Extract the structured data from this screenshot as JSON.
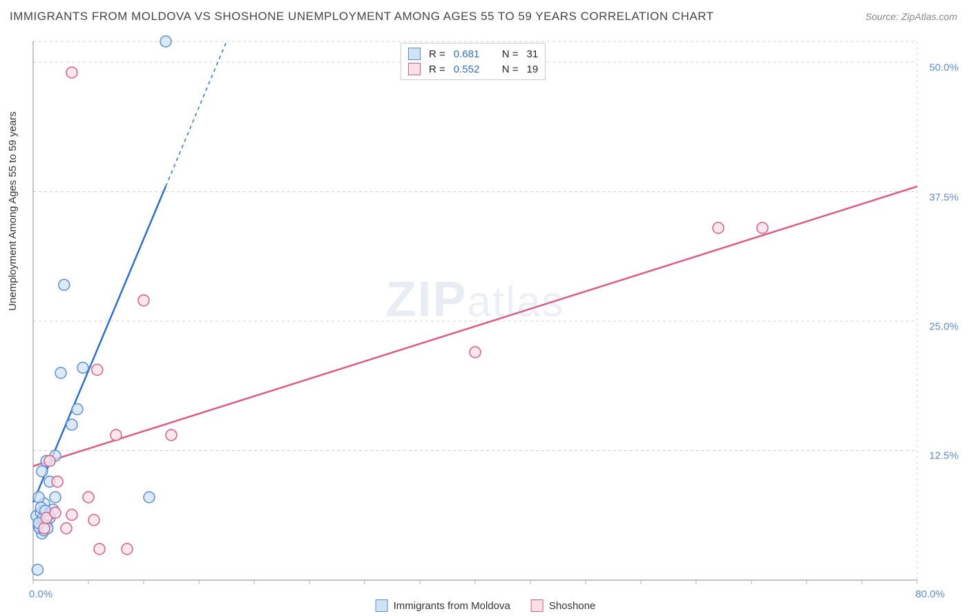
{
  "title": "IMMIGRANTS FROM MOLDOVA VS SHOSHONE UNEMPLOYMENT AMONG AGES 55 TO 59 YEARS CORRELATION CHART",
  "source": "Source: ZipAtlas.com",
  "y_axis_label": "Unemployment Among Ages 55 to 59 years",
  "watermark": {
    "part1": "ZIP",
    "part2": "atlas"
  },
  "chart": {
    "type": "scatter",
    "background_color": "#ffffff",
    "grid_color": "#d0d0d0",
    "axis_color": "#b0b0b0",
    "xlim": [
      0,
      80
    ],
    "ylim": [
      0,
      52
    ],
    "y_ticks": [
      12.5,
      25.0,
      37.5,
      50.0
    ],
    "y_tick_labels": [
      "12.5%",
      "25.0%",
      "37.5%",
      "50.0%"
    ],
    "x_tick_min": {
      "value": 0,
      "label": "0.0%"
    },
    "x_tick_max": {
      "value": 80,
      "label": "80.0%"
    },
    "marker_radius": 8,
    "marker_stroke_width": 1.5,
    "trendline_width": 2.5,
    "series": [
      {
        "name": "Immigrants from Moldova",
        "fill": "#cfe2f6",
        "stroke": "#5b8dd6",
        "line_color": "#2a6fd6",
        "r": "0.681",
        "n": "31",
        "trendline": {
          "x1": 0,
          "y1": 7.5,
          "x2": 17.5,
          "y2": 52,
          "dash_after_x": 12
        },
        "points": [
          {
            "x": 0.4,
            "y": 1.0
          },
          {
            "x": 0.8,
            "y": 4.5
          },
          {
            "x": 0.5,
            "y": 5.2
          },
          {
            "x": 1.0,
            "y": 5.8
          },
          {
            "x": 1.2,
            "y": 5.5
          },
          {
            "x": 0.3,
            "y": 6.2
          },
          {
            "x": 1.5,
            "y": 6.0
          },
          {
            "x": 0.7,
            "y": 6.5
          },
          {
            "x": 1.8,
            "y": 6.8
          },
          {
            "x": 1.0,
            "y": 7.4
          },
          {
            "x": 0.5,
            "y": 8.0
          },
          {
            "x": 2.0,
            "y": 8.0
          },
          {
            "x": 10.5,
            "y": 8.0
          },
          {
            "x": 1.5,
            "y": 9.5
          },
          {
            "x": 0.8,
            "y": 10.5
          },
          {
            "x": 1.2,
            "y": 11.5
          },
          {
            "x": 2.0,
            "y": 12.0
          },
          {
            "x": 3.5,
            "y": 15.0
          },
          {
            "x": 4.0,
            "y": 16.5
          },
          {
            "x": 2.5,
            "y": 20.0
          },
          {
            "x": 4.5,
            "y": 20.5
          },
          {
            "x": 2.8,
            "y": 28.5
          },
          {
            "x": 12.0,
            "y": 52.0
          },
          {
            "x": 0.6,
            "y": 5.0
          },
          {
            "x": 1.0,
            "y": 4.8
          },
          {
            "x": 1.3,
            "y": 5.0
          },
          {
            "x": 0.9,
            "y": 6.0
          },
          {
            "x": 1.4,
            "y": 6.3
          },
          {
            "x": 0.7,
            "y": 7.0
          },
          {
            "x": 1.1,
            "y": 6.7
          },
          {
            "x": 0.5,
            "y": 5.5
          }
        ]
      },
      {
        "name": "Shoshone",
        "fill": "#fbe0e6",
        "stroke": "#e05a82",
        "line_color": "#e05a82",
        "r": "0.552",
        "n": "19",
        "trendline": {
          "x1": 0,
          "y1": 11.0,
          "x2": 80,
          "y2": 38.0
        },
        "points": [
          {
            "x": 1.0,
            "y": 5.0
          },
          {
            "x": 3.0,
            "y": 5.0
          },
          {
            "x": 5.5,
            "y": 5.8
          },
          {
            "x": 6.0,
            "y": 3.0
          },
          {
            "x": 8.5,
            "y": 3.0
          },
          {
            "x": 5.0,
            "y": 8.0
          },
          {
            "x": 2.2,
            "y": 9.5
          },
          {
            "x": 1.5,
            "y": 11.5
          },
          {
            "x": 7.5,
            "y": 14.0
          },
          {
            "x": 12.5,
            "y": 14.0
          },
          {
            "x": 5.8,
            "y": 20.3
          },
          {
            "x": 10.0,
            "y": 27.0
          },
          {
            "x": 40.0,
            "y": 22.0
          },
          {
            "x": 3.5,
            "y": 49.0
          },
          {
            "x": 62.0,
            "y": 34.0
          },
          {
            "x": 66.0,
            "y": 34.0
          },
          {
            "x": 1.2,
            "y": 6.0
          },
          {
            "x": 2.0,
            "y": 6.5
          },
          {
            "x": 3.5,
            "y": 6.3
          }
        ]
      }
    ]
  },
  "legend_top": {
    "r_label": "R  =",
    "n_label": "N  ="
  },
  "legend_bottom": {
    "items": [
      {
        "label": "Immigrants from Moldova",
        "fill": "#cfe2f6",
        "stroke": "#5b8dd6"
      },
      {
        "label": "Shoshone",
        "fill": "#fbe0e6",
        "stroke": "#e05a82"
      }
    ]
  }
}
